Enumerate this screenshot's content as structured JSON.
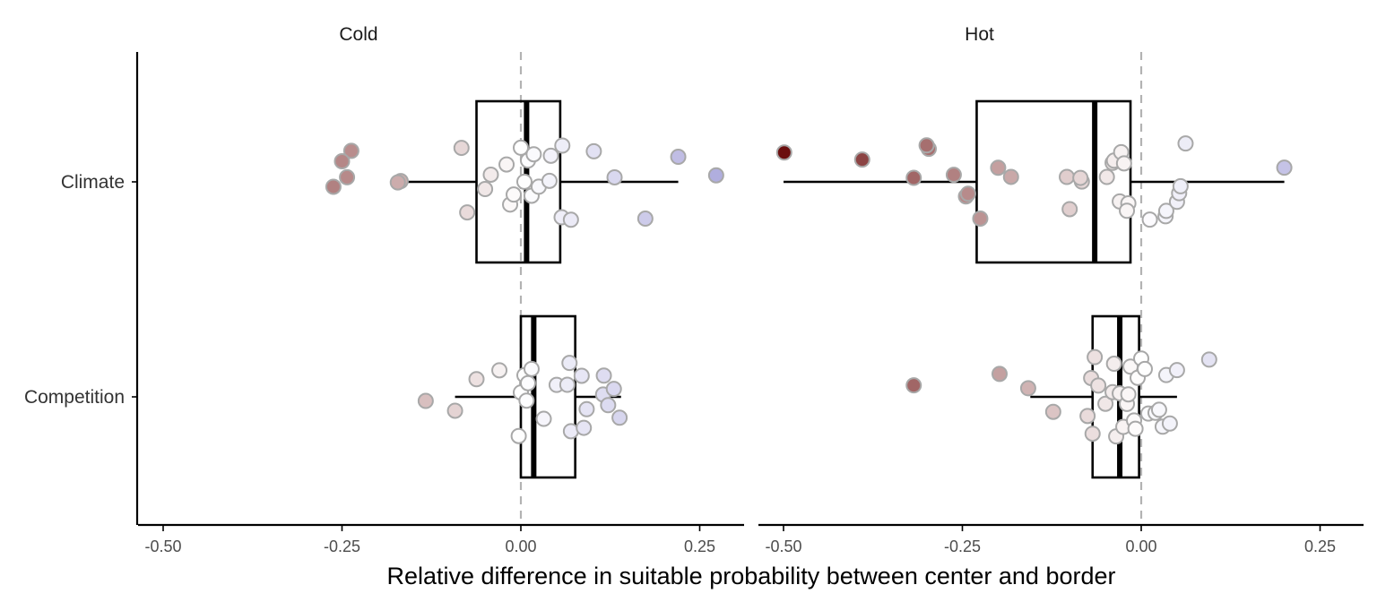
{
  "chart_data": {
    "type": "boxplot",
    "xlabel": "Relative difference in suitable probability between center and border",
    "ylabel": "",
    "xlim": [
      -0.55,
      0.31
    ],
    "x_ticks": [
      -0.5,
      -0.25,
      0.0,
      0.25
    ],
    "x_tick_labels": [
      "-0.50",
      "-0.25",
      "0.00",
      "0.25"
    ],
    "categories": [
      "Climate",
      "Competition"
    ],
    "reference_line": 0.0,
    "grid": false,
    "color_scale": {
      "low": "#6b0f0f",
      "mid": "#ffffff",
      "high": "#6f6ac2",
      "domain": [
        -0.5,
        0.5
      ]
    },
    "facets": [
      {
        "title": "Cold",
        "boxes": [
          {
            "category": "Climate",
            "whisker_low": -0.17,
            "q1": -0.062,
            "median": 0.008,
            "q3": 0.055,
            "whisker_high": 0.22
          },
          {
            "category": "Competition",
            "whisker_low": -0.092,
            "q1": 0.0,
            "median": 0.018,
            "q3": 0.076,
            "whisker_high": 0.14
          }
        ],
        "points": [
          {
            "category": "Climate",
            "values": [
              -0.168,
              -0.262,
              -0.237,
              -0.25,
              -0.243,
              -0.172,
              -0.083,
              -0.075,
              -0.05,
              -0.042,
              -0.02,
              -0.015,
              -0.01,
              0.0,
              0.005,
              0.01,
              0.015,
              0.018,
              0.025,
              0.04,
              0.042,
              0.058,
              0.057,
              0.07,
              0.102,
              0.131,
              0.174,
              0.22,
              0.273
            ]
          },
          {
            "category": "Competition",
            "values": [
              -0.133,
              -0.092,
              -0.062,
              -0.03,
              -0.003,
              0.0,
              0.005,
              0.008,
              0.01,
              0.015,
              0.032,
              0.05,
              0.065,
              0.068,
              0.07,
              0.085,
              0.088,
              0.115,
              0.116,
              0.122,
              0.13,
              0.138,
              0.092
            ]
          }
        ]
      },
      {
        "title": "Hot",
        "boxes": [
          {
            "category": "Climate",
            "whisker_low": -0.5,
            "q1": -0.23,
            "median": -0.065,
            "q3": -0.015,
            "whisker_high": 0.2
          },
          {
            "category": "Competition",
            "whisker_low": -0.155,
            "q1": -0.068,
            "median": -0.03,
            "q3": -0.003,
            "whisker_high": 0.05
          }
        ],
        "points": [
          {
            "category": "Climate",
            "values": [
              -0.499,
              -0.39,
              -0.318,
              -0.297,
              -0.3,
              -0.262,
              -0.245,
              -0.242,
              -0.225,
              -0.2,
              -0.182,
              -0.083,
              -0.104,
              -0.1,
              -0.085,
              -0.048,
              -0.04,
              -0.038,
              -0.03,
              -0.028,
              -0.024,
              -0.018,
              -0.02,
              0.012,
              0.034,
              0.035,
              0.05,
              0.053,
              0.055,
              0.062,
              0.2
            ]
          },
          {
            "category": "Competition",
            "values": [
              -0.318,
              -0.198,
              -0.158,
              -0.123,
              -0.075,
              -0.07,
              -0.068,
              -0.065,
              -0.06,
              -0.05,
              -0.04,
              -0.038,
              -0.035,
              -0.03,
              -0.025,
              -0.02,
              -0.018,
              -0.015,
              -0.01,
              -0.008,
              -0.005,
              0.0,
              0.005,
              0.01,
              0.02,
              0.025,
              0.03,
              0.035,
              0.04,
              0.05,
              0.095
            ]
          }
        ]
      }
    ]
  }
}
